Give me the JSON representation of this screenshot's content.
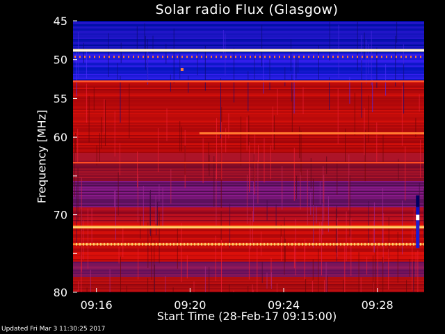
{
  "chart_data": {
    "type": "heatmap",
    "title": "Solar radio Flux (Glasgow)",
    "xlabel": "Start Time (28-Feb-17 09:15:00)",
    "ylabel": "Frequency [MHz]",
    "x_ticks": [
      "09:16",
      "09:20",
      "09:24",
      "09:28"
    ],
    "x_tick_minutes": [
      1,
      5,
      9,
      13
    ],
    "x_range_minutes_after_start": [
      0,
      15
    ],
    "y_ticks": [
      45,
      50,
      55,
      60,
      65,
      70,
      75,
      80
    ],
    "y_tick_labels": [
      "45",
      "50",
      "55",
      "60",
      "",
      "70",
      "",
      "80"
    ],
    "ylim": [
      45,
      80
    ],
    "colormap": [
      "#000000",
      "#0000ff",
      "#cc0000",
      "#ffffff"
    ],
    "bright_bands_mhz": [
      48.8,
      52.8,
      59.5,
      63.3,
      71.6,
      73.8
    ]
  },
  "footer": {
    "updated": "Updated Fri Mar  3 11:30:25 2017"
  }
}
